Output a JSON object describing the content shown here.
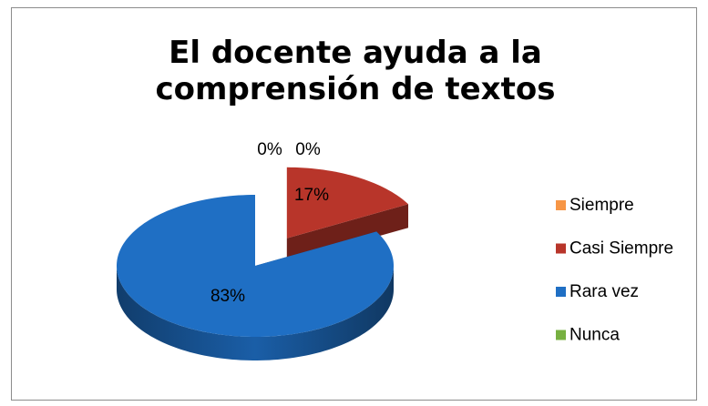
{
  "chart_data": {
    "type": "pie",
    "title": "El docente ayuda  a la comprensión de textos",
    "categories": [
      "Siempre",
      "Casi Siempre",
      "Rara vez",
      "Nunca"
    ],
    "values": [
      0,
      17,
      83,
      0
    ],
    "value_labels": [
      "0%",
      "17%",
      "83%",
      "0%"
    ],
    "colors": [
      "#f79646",
      "#b8352a",
      "#1f6fc4",
      "#77b041"
    ],
    "legend": "right"
  }
}
